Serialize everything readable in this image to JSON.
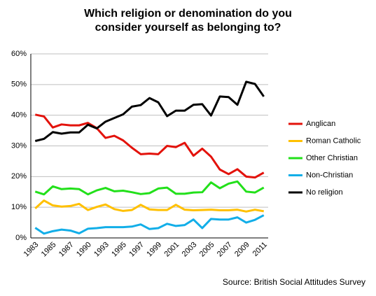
{
  "chart_data": {
    "type": "line",
    "title": "Which religion or denomination do you consider yourself as belonging to?",
    "source": "Source: British Social Attitudes Survey",
    "categories": [
      "1983",
      null,
      "1985",
      null,
      "1987",
      null,
      "1990",
      null,
      "1993",
      null,
      "1995",
      null,
      "1997",
      null,
      "1999",
      null,
      "2001",
      null,
      "2003",
      null,
      "2005",
      null,
      "2007",
      null,
      "2009",
      null,
      "2011"
    ],
    "ylim": [
      0,
      60
    ],
    "yticks": [
      {
        "value": 0,
        "label": "0%"
      },
      {
        "value": 10,
        "label": "10%"
      },
      {
        "value": 20,
        "label": "20%"
      },
      {
        "value": 30,
        "label": "30%"
      },
      {
        "value": 40,
        "label": "40%"
      },
      {
        "value": 50,
        "label": "50%"
      },
      {
        "value": 60,
        "label": "60%"
      }
    ],
    "grid": true,
    "legend": "right",
    "series": [
      {
        "name": "Anglican",
        "color": "#e3120b",
        "values": [
          40.2,
          39.6,
          36,
          37,
          36.7,
          36.7,
          37.5,
          35.8,
          32.6,
          33.3,
          31.8,
          29.4,
          27.3,
          27.5,
          27.3,
          30,
          29.6,
          31,
          26.8,
          29.1,
          26.5,
          22.3,
          20.8,
          22.4,
          20,
          19.7,
          21.3
        ]
      },
      {
        "name": "Roman Catholic",
        "color": "#ffc000",
        "values": [
          9.6,
          12.2,
          10.6,
          10.2,
          10.4,
          11.1,
          9.1,
          10.1,
          10.9,
          9.4,
          8.8,
          9.1,
          10.8,
          9.3,
          9.1,
          9.1,
          10.8,
          9.2,
          9.0,
          9.1,
          9.2,
          9.0,
          9.0,
          9.2,
          8.6,
          9.2,
          8.7
        ]
      },
      {
        "name": "Other Christian",
        "color": "#22e01a",
        "values": [
          15.1,
          14.2,
          16.8,
          15.9,
          16.1,
          15.9,
          14.2,
          15.5,
          16.3,
          15.2,
          15.4,
          14.9,
          14.3,
          14.6,
          16.1,
          16.4,
          14.4,
          14.4,
          14.8,
          14.9,
          18.1,
          16.2,
          17.7,
          18.4,
          15.1,
          14.8,
          16.4
        ]
      },
      {
        "name": "Non-Christian",
        "color": "#12aee8",
        "values": [
          3.3,
          1.4,
          2.2,
          2.7,
          2.4,
          1.5,
          3.0,
          3.2,
          3.5,
          3.5,
          3.5,
          3.7,
          4.4,
          2.9,
          3.2,
          4.6,
          3.9,
          4.2,
          6.0,
          3.2,
          6.2,
          6.0,
          6.0,
          6.7,
          5.0,
          5.9,
          7.4
        ]
      },
      {
        "name": "No religion",
        "color": "#000000",
        "values": [
          31.6,
          32.3,
          34.5,
          34,
          34.4,
          34.4,
          36.9,
          35.7,
          37.9,
          39.1,
          40.3,
          42.8,
          43.3,
          45.6,
          44.2,
          39.7,
          41.5,
          41.5,
          43.4,
          43.6,
          39.9,
          46.1,
          45.9,
          43.4,
          50.9,
          50.2,
          46.1
        ]
      }
    ]
  }
}
